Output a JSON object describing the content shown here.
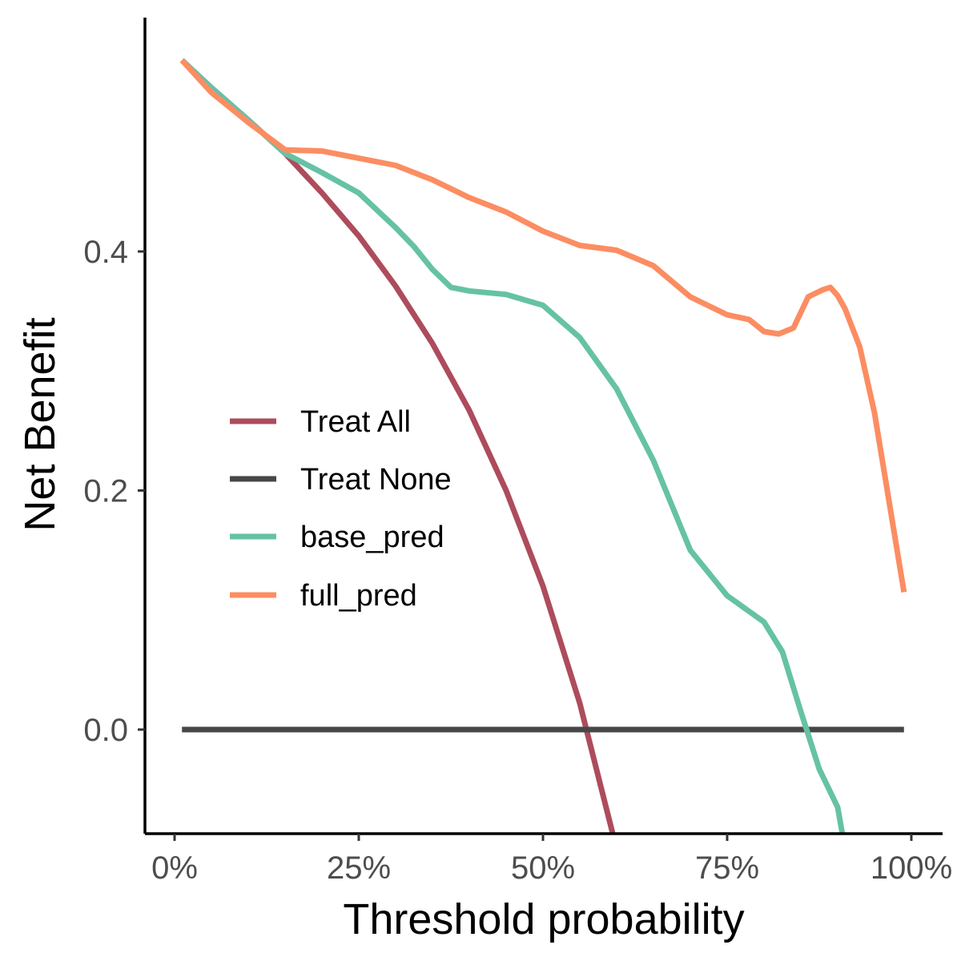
{
  "chart_data": {
    "type": "line",
    "title": "",
    "xlabel": "Threshold probability",
    "ylabel": "Net Benefit",
    "xlim": [
      -0.02,
      1.03
    ],
    "ylim": [
      -0.087,
      0.63
    ],
    "x_ticks": [
      0,
      0.25,
      0.5,
      0.75,
      1.0
    ],
    "x_tick_labels": [
      "0%",
      "25%",
      "50%",
      "75%",
      "100%"
    ],
    "y_ticks": [
      0.0,
      0.2,
      0.4
    ],
    "y_tick_labels": [
      "0.0",
      "0.2",
      "0.4"
    ],
    "grid": false,
    "legend": "center-left",
    "series": [
      {
        "name": "Treat All",
        "color": "#ad4c5c",
        "x": [
          0.01,
          0.05,
          0.1,
          0.15,
          0.2,
          0.25,
          0.3,
          0.35,
          0.4,
          0.45,
          0.5,
          0.55,
          0.6
        ],
        "y": [
          0.56,
          0.537,
          0.51,
          0.482,
          0.449,
          0.413,
          0.371,
          0.323,
          0.267,
          0.2,
          0.12,
          0.022,
          -0.1
        ]
      },
      {
        "name": "Treat None",
        "color": "#474747",
        "x": [
          0.01,
          0.99
        ],
        "y": [
          0.0,
          0.0
        ]
      },
      {
        "name": "base_pred",
        "color": "#66c2a5",
        "x": [
          0.01,
          0.05,
          0.1,
          0.15,
          0.2,
          0.25,
          0.3,
          0.325,
          0.35,
          0.375,
          0.4,
          0.45,
          0.5,
          0.55,
          0.6,
          0.65,
          0.7,
          0.75,
          0.8,
          0.825,
          0.85,
          0.875,
          0.9,
          0.91
        ],
        "y": [
          0.56,
          0.537,
          0.51,
          0.482,
          0.466,
          0.449,
          0.42,
          0.404,
          0.385,
          0.37,
          0.367,
          0.364,
          0.355,
          0.328,
          0.285,
          0.225,
          0.15,
          0.112,
          0.09,
          0.065,
          0.015,
          -0.033,
          -0.065,
          -0.1
        ]
      },
      {
        "name": "full_pred",
        "color": "#fc8d62",
        "x": [
          0.01,
          0.05,
          0.1,
          0.15,
          0.2,
          0.25,
          0.3,
          0.35,
          0.4,
          0.45,
          0.5,
          0.55,
          0.6,
          0.65,
          0.7,
          0.75,
          0.78,
          0.8,
          0.82,
          0.84,
          0.86,
          0.88,
          0.89,
          0.9,
          0.91,
          0.93,
          0.95,
          0.97,
          0.99
        ],
        "y": [
          0.56,
          0.533,
          0.508,
          0.485,
          0.484,
          0.478,
          0.472,
          0.46,
          0.445,
          0.433,
          0.417,
          0.405,
          0.401,
          0.388,
          0.362,
          0.347,
          0.343,
          0.333,
          0.331,
          0.336,
          0.362,
          0.368,
          0.37,
          0.363,
          0.352,
          0.32,
          0.265,
          0.19,
          0.115
        ]
      }
    ]
  }
}
